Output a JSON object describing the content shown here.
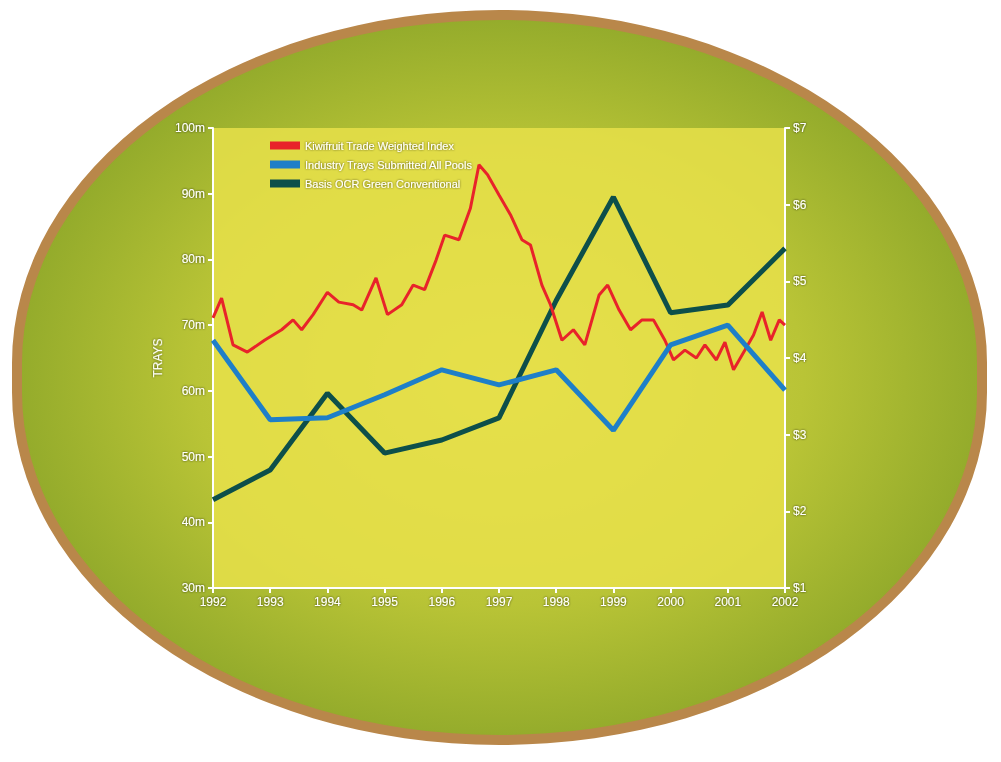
{
  "chart_data": {
    "type": "line",
    "y_label": "TRAYS",
    "legend": "upper left",
    "grid": false,
    "xlim": [
      1992,
      2002
    ],
    "xticks": [
      1992,
      1993,
      1994,
      1995,
      1996,
      1997,
      1998,
      1999,
      2000,
      2001,
      2002
    ],
    "ylim": [
      30,
      100
    ],
    "yticks": [
      {
        "value": 30,
        "label": "30m"
      },
      {
        "value": 40,
        "label": "40m"
      },
      {
        "value": 50,
        "label": "50m"
      },
      {
        "value": 60,
        "label": "60m"
      },
      {
        "value": 70,
        "label": "70m"
      },
      {
        "value": 80,
        "label": "80m"
      },
      {
        "value": 90,
        "label": "90m"
      },
      {
        "value": 100,
        "label": "100m"
      }
    ],
    "y2lim": [
      1,
      7
    ],
    "y2ticks": [
      {
        "value": 1,
        "label": "$1"
      },
      {
        "value": 2,
        "label": "$2"
      },
      {
        "value": 3,
        "label": "$3"
      },
      {
        "value": 4,
        "label": "$4"
      },
      {
        "value": 5,
        "label": "$5"
      },
      {
        "value": 6,
        "label": "$6"
      },
      {
        "value": 7,
        "label": "$7"
      }
    ],
    "series": [
      {
        "name": "Kiwifruit Trade Weighted Index",
        "color": "#e8232a",
        "axis": "y",
        "x": [
          1992.0,
          1992.15,
          1992.35,
          1992.6,
          1992.9,
          1993.2,
          1993.4,
          1993.55,
          1993.75,
          1994.0,
          1994.2,
          1994.45,
          1994.6,
          1994.85,
          1995.05,
          1995.3,
          1995.5,
          1995.7,
          1995.9,
          1996.05,
          1996.3,
          1996.5,
          1996.65,
          1996.8,
          1997.0,
          1997.2,
          1997.4,
          1997.55,
          1997.75,
          1997.9,
          1998.1,
          1998.3,
          1998.5,
          1998.75,
          1998.9,
          1999.1,
          1999.3,
          1999.5,
          1999.7,
          1999.9,
          2000.05,
          2000.25,
          2000.45,
          2000.6,
          2000.8,
          2000.95,
          2001.1,
          2001.3,
          2001.45,
          2001.6,
          2001.75,
          2001.9,
          2002.0
        ],
        "values": [
          71.1,
          74.1,
          67,
          65.9,
          67.7,
          69.3,
          70.8,
          69.3,
          71.6,
          75,
          73.5,
          73.1,
          72.3,
          77.2,
          71.6,
          73.1,
          76.1,
          75.4,
          79.9,
          83.7,
          83,
          87.8,
          94.4,
          92.9,
          89.8,
          86.8,
          83,
          82.2,
          76.1,
          73.1,
          67.7,
          69.3,
          67,
          74.6,
          76.1,
          72.3,
          69.3,
          70.8,
          70.8,
          67.7,
          64.7,
          66.2,
          65,
          67,
          64.7,
          67.4,
          63.2,
          66.2,
          68.5,
          72,
          67.7,
          70.8,
          70
        ]
      },
      {
        "name": "Industry Trays Submitted All Pools",
        "color": "#1e7fc8",
        "axis": "y",
        "x": [
          1992,
          1993,
          1994,
          1995,
          1996,
          1997,
          1998,
          1999,
          2000,
          2001,
          2002
        ],
        "values": [
          67.7,
          55.6,
          55.9,
          59.4,
          63.2,
          60.9,
          63.2,
          54,
          67,
          70,
          60.1
        ]
      },
      {
        "name": "Basis OCR Green Conventional",
        "color": "#0d4f4a",
        "axis": "y2",
        "x": [
          1992,
          1993,
          1994,
          1995,
          1996,
          1997,
          1998,
          1999,
          2000,
          2001,
          2002
        ],
        "values": [
          2.15,
          2.54,
          3.54,
          2.76,
          2.93,
          3.22,
          4.75,
          6.1,
          4.59,
          4.69,
          5.43
        ]
      }
    ]
  }
}
